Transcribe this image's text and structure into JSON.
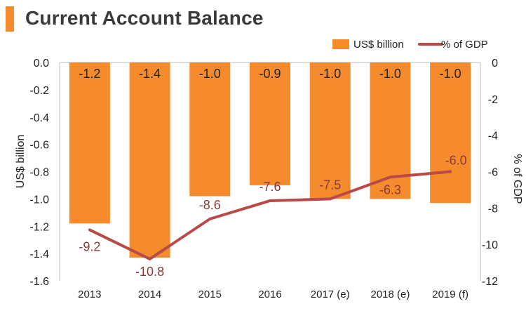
{
  "title": "Current Account Balance",
  "colors": {
    "bar": "#f58b2c",
    "line": "#b94a48",
    "line_label": "#8a3b38",
    "text": "#222222",
    "title_accent": "#f58b2c"
  },
  "chart_data": {
    "type": "bar+line",
    "categories": [
      "2013",
      "2014",
      "2015",
      "2016",
      "2017 (e)",
      "2018 (e)",
      "2019 (f)"
    ],
    "series": [
      {
        "name": "US$ billion",
        "type": "bar",
        "axis": "left",
        "values": [
          -1.18,
          -1.43,
          -0.98,
          -0.9,
          -1.0,
          -1.0,
          -1.03
        ],
        "labels": [
          "-1.2",
          "-1.4",
          "-1.0",
          "-0.9",
          "-1.0",
          "-1.0",
          "-1.0"
        ]
      },
      {
        "name": "% of GDP",
        "type": "line",
        "axis": "right",
        "values": [
          -9.2,
          -10.8,
          -8.6,
          -7.6,
          -7.5,
          -6.3,
          -6.0
        ],
        "labels": [
          "-9.2",
          "-10.8",
          "-8.6",
          "-7.6",
          "-7.5",
          "-6.3",
          "-6.0"
        ]
      }
    ],
    "y_left": {
      "label": "US$ billion",
      "min": -1.6,
      "max": 0,
      "ticks": [
        "0.0",
        "-0.2",
        "-0.4",
        "-0.6",
        "-0.8",
        "-1.0",
        "-1.2",
        "-1.4",
        "-1.6"
      ]
    },
    "y_right": {
      "label": "% of GDP",
      "min": -12,
      "max": 0,
      "ticks": [
        "0",
        "-2",
        "-4",
        "-6",
        "-8",
        "-10",
        "-12"
      ]
    },
    "legend": {
      "position": "top-right",
      "items": [
        "US$ billion",
        "% of GDP"
      ]
    },
    "grid": false
  }
}
